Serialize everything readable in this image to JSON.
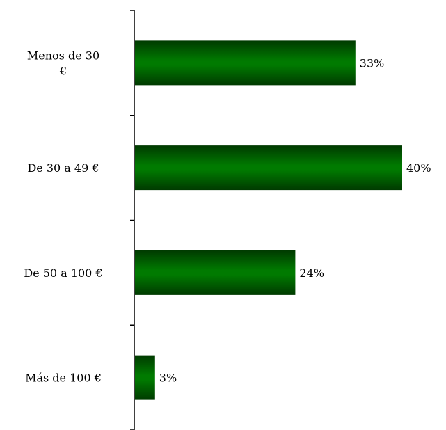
{
  "chart_data": {
    "type": "bar",
    "orientation": "horizontal",
    "title": "",
    "xlabel": "",
    "ylabel": "",
    "categories": [
      [
        "Menos de 30",
        "€"
      ],
      [
        "De 30 a 49 €"
      ],
      [
        "De 50 a 100 €"
      ],
      [
        "Más de 100 €"
      ]
    ],
    "values": [
      33,
      40,
      24,
      3
    ],
    "value_labels": [
      "33%",
      "40%",
      "24%",
      "3%"
    ],
    "unit": "%",
    "xlim": [
      0,
      40
    ],
    "grid": false,
    "legend": "none",
    "bar_color": "#007a00",
    "bar_dark_color": "#003a00"
  }
}
